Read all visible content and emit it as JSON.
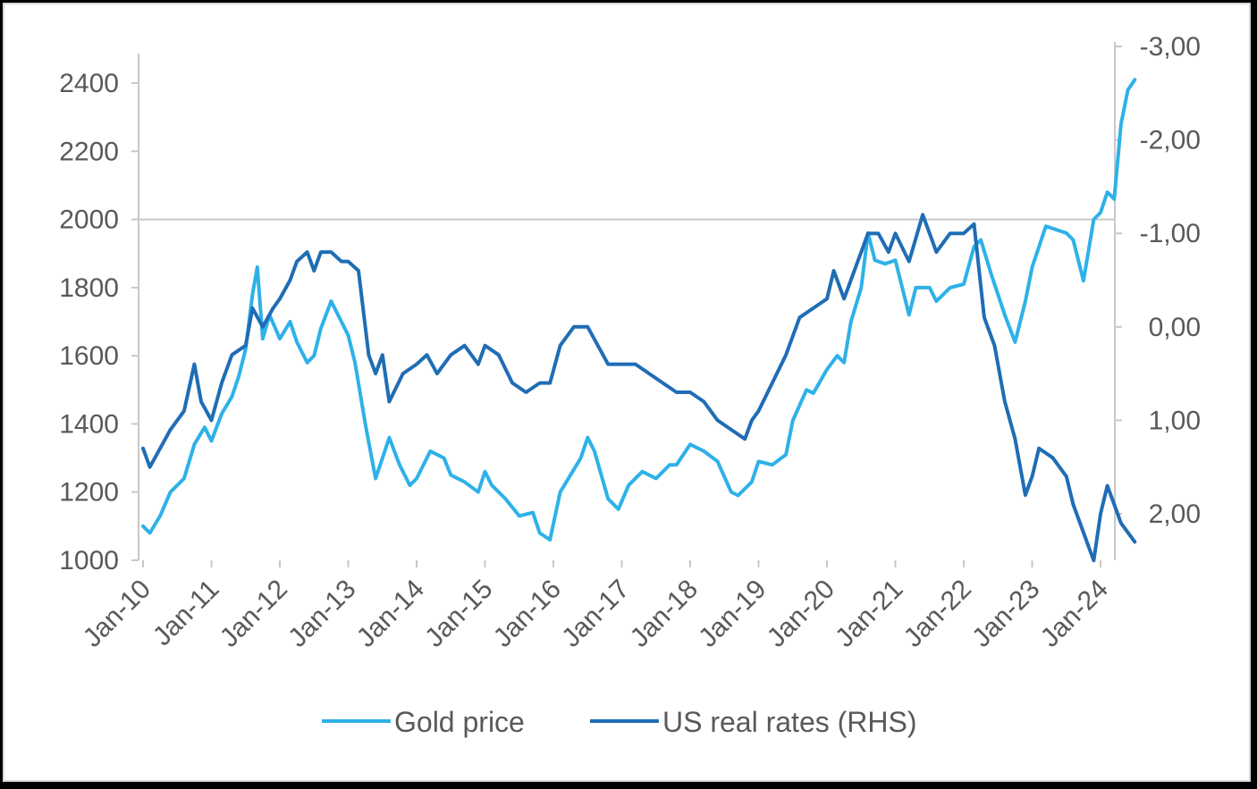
{
  "chart_data": {
    "type": "line",
    "title": "",
    "xlabel": "",
    "ylabel": "",
    "x_categories": [
      "Jan-10",
      "Jan-11",
      "Jan-12",
      "Jan-13",
      "Jan-14",
      "Jan-15",
      "Jan-16",
      "Jan-17",
      "Jan-18",
      "Jan-19",
      "Jan-20",
      "Jan-21",
      "Jan-22",
      "Jan-23",
      "Jan-24"
    ],
    "y_left": {
      "ylim": [
        1000,
        2400
      ],
      "ticks": [
        "1000",
        "1200",
        "1400",
        "1600",
        "1800",
        "2000",
        "2200",
        "2400"
      ],
      "tick_values": [
        1000,
        1200,
        1400,
        1600,
        1800,
        2000,
        2200,
        2400
      ]
    },
    "y_right": {
      "ylim": [
        2.5,
        -3.0
      ],
      "inverted": true,
      "ticks": [
        "2,00",
        "1,00",
        "0,00",
        "-1,00",
        "-2,00",
        "-3,00"
      ],
      "tick_values": [
        2,
        1,
        0,
        -1,
        -2,
        -3
      ]
    },
    "reference_line_left": 2000,
    "grid": false,
    "legend_position": "bottom",
    "series": [
      {
        "name": "Gold price",
        "axis": "left",
        "color": "#2eb1e8",
        "x": [
          2010.0,
          2010.1,
          2010.25,
          2010.4,
          2010.6,
          2010.75,
          2010.9,
          2011.0,
          2011.15,
          2011.3,
          2011.4,
          2011.5,
          2011.6,
          2011.67,
          2011.75,
          2011.85,
          2012.0,
          2012.15,
          2012.25,
          2012.4,
          2012.5,
          2012.6,
          2012.75,
          2012.9,
          2013.0,
          2013.1,
          2013.25,
          2013.4,
          2013.5,
          2013.6,
          2013.75,
          2013.9,
          2014.0,
          2014.2,
          2014.4,
          2014.5,
          2014.7,
          2014.9,
          2015.0,
          2015.1,
          2015.3,
          2015.5,
          2015.7,
          2015.8,
          2015.95,
          2016.1,
          2016.25,
          2016.4,
          2016.5,
          2016.6,
          2016.8,
          2016.95,
          2017.1,
          2017.3,
          2017.5,
          2017.7,
          2017.8,
          2018.0,
          2018.2,
          2018.4,
          2018.6,
          2018.7,
          2018.9,
          2019.0,
          2019.2,
          2019.4,
          2019.5,
          2019.7,
          2019.8,
          2020.0,
          2020.15,
          2020.25,
          2020.35,
          2020.5,
          2020.6,
          2020.7,
          2020.85,
          2021.0,
          2021.2,
          2021.3,
          2021.5,
          2021.6,
          2021.8,
          2022.0,
          2022.15,
          2022.25,
          2022.4,
          2022.6,
          2022.75,
          2022.9,
          2023.0,
          2023.2,
          2023.35,
          2023.5,
          2023.6,
          2023.75,
          2023.9,
          2024.0,
          2024.1,
          2024.2,
          2024.3,
          2024.4,
          2024.5
        ],
        "values": [
          1100,
          1080,
          1130,
          1200,
          1240,
          1340,
          1390,
          1350,
          1430,
          1480,
          1540,
          1620,
          1780,
          1860,
          1650,
          1720,
          1650,
          1700,
          1640,
          1580,
          1600,
          1680,
          1760,
          1700,
          1660,
          1580,
          1400,
          1240,
          1300,
          1360,
          1280,
          1220,
          1240,
          1320,
          1300,
          1250,
          1230,
          1200,
          1260,
          1220,
          1180,
          1130,
          1140,
          1080,
          1060,
          1200,
          1250,
          1300,
          1360,
          1320,
          1180,
          1150,
          1220,
          1260,
          1240,
          1280,
          1280,
          1340,
          1320,
          1290,
          1200,
          1190,
          1230,
          1290,
          1280,
          1310,
          1410,
          1500,
          1490,
          1560,
          1600,
          1580,
          1700,
          1800,
          1960,
          1880,
          1870,
          1880,
          1720,
          1800,
          1800,
          1760,
          1800,
          1810,
          1920,
          1940,
          1840,
          1720,
          1640,
          1760,
          1860,
          1980,
          1970,
          1960,
          1940,
          1820,
          2000,
          2020,
          2080,
          2060,
          2280,
          2380,
          2410
        ]
      },
      {
        "name": "US real rates (RHS)",
        "axis": "right",
        "color": "#1f6db5",
        "x": [
          2010.0,
          2010.1,
          2010.25,
          2010.4,
          2010.6,
          2010.75,
          2010.85,
          2011.0,
          2011.15,
          2011.3,
          2011.5,
          2011.6,
          2011.75,
          2011.9,
          2012.0,
          2012.15,
          2012.25,
          2012.4,
          2012.5,
          2012.6,
          2012.75,
          2012.9,
          2013.0,
          2013.15,
          2013.3,
          2013.4,
          2013.5,
          2013.6,
          2013.8,
          2014.0,
          2014.15,
          2014.3,
          2014.5,
          2014.7,
          2014.9,
          2015.0,
          2015.2,
          2015.4,
          2015.6,
          2015.8,
          2015.95,
          2016.1,
          2016.3,
          2016.5,
          2016.65,
          2016.8,
          2016.9,
          2017.0,
          2017.2,
          2017.4,
          2017.6,
          2017.8,
          2018.0,
          2018.2,
          2018.4,
          2018.6,
          2018.8,
          2018.9,
          2019.0,
          2019.2,
          2019.4,
          2019.6,
          2019.8,
          2020.0,
          2020.1,
          2020.25,
          2020.4,
          2020.5,
          2020.6,
          2020.75,
          2020.9,
          2021.0,
          2021.2,
          2021.4,
          2021.6,
          2021.8,
          2022.0,
          2022.15,
          2022.3,
          2022.45,
          2022.6,
          2022.75,
          2022.9,
          2023.0,
          2023.1,
          2023.3,
          2023.5,
          2023.6,
          2023.7,
          2023.8,
          2023.9,
          2024.0,
          2024.1,
          2024.2,
          2024.3,
          2024.4,
          2024.5
        ],
        "values": [
          1.3,
          1.5,
          1.3,
          1.1,
          0.9,
          0.4,
          0.8,
          1.0,
          0.6,
          0.3,
          0.2,
          -0.2,
          0.0,
          -0.2,
          -0.3,
          -0.5,
          -0.7,
          -0.8,
          -0.6,
          -0.8,
          -0.8,
          -0.7,
          -0.7,
          -0.6,
          0.3,
          0.5,
          0.3,
          0.8,
          0.5,
          0.4,
          0.3,
          0.5,
          0.3,
          0.2,
          0.4,
          0.2,
          0.3,
          0.6,
          0.7,
          0.6,
          0.6,
          0.2,
          0.0,
          0.0,
          0.2,
          0.4,
          0.4,
          0.4,
          0.4,
          0.5,
          0.6,
          0.7,
          0.7,
          0.8,
          1.0,
          1.1,
          1.2,
          1.0,
          0.9,
          0.6,
          0.3,
          -0.1,
          -0.2,
          -0.3,
          -0.6,
          -0.3,
          -0.6,
          -0.8,
          -1.0,
          -1.0,
          -0.8,
          -1.0,
          -0.7,
          -1.2,
          -0.8,
          -1.0,
          -1.0,
          -1.1,
          -0.1,
          0.2,
          0.8,
          1.2,
          1.8,
          1.6,
          1.3,
          1.4,
          1.6,
          1.9,
          2.1,
          2.3,
          2.5,
          2.0,
          1.7,
          1.9,
          2.1,
          2.2,
          2.3
        ]
      }
    ]
  }
}
